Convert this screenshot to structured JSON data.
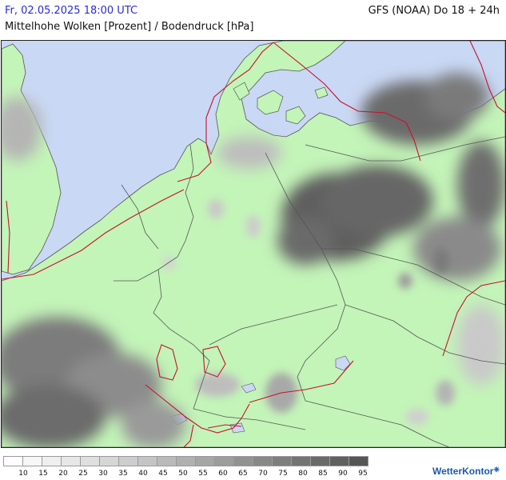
{
  "header": {
    "date": "Fr, 02.05.2025 18:00 UTC",
    "model": "GFS (NOAA) Do 18 + 24h",
    "subtitle": "Mittelhohe Wolken [Prozent] / Bodendruck [hPa]"
  },
  "colors": {
    "sea": "#c9d8f4",
    "land": "#c3f4b8",
    "border": "#555555",
    "isobar": "#c8102e"
  },
  "legend": {
    "labels": [
      "10",
      "15",
      "20",
      "25",
      "30",
      "35",
      "40",
      "45",
      "50",
      "55",
      "60",
      "65",
      "70",
      "75",
      "80",
      "85",
      "90",
      "95"
    ],
    "colors": [
      "#ffffff",
      "#f7f7f7",
      "#efefef",
      "#e7e7e7",
      "#dfdfdf",
      "#d6d6d6",
      "#cdcdcd",
      "#c4c4c4",
      "#bababa",
      "#b0b0b0",
      "#a6a6a6",
      "#9c9c9c",
      "#929292",
      "#888888",
      "#7e7e7e",
      "#747474",
      "#6a6a6a",
      "#606060",
      "#565656"
    ]
  },
  "logo": {
    "text": "WetterKontor"
  }
}
